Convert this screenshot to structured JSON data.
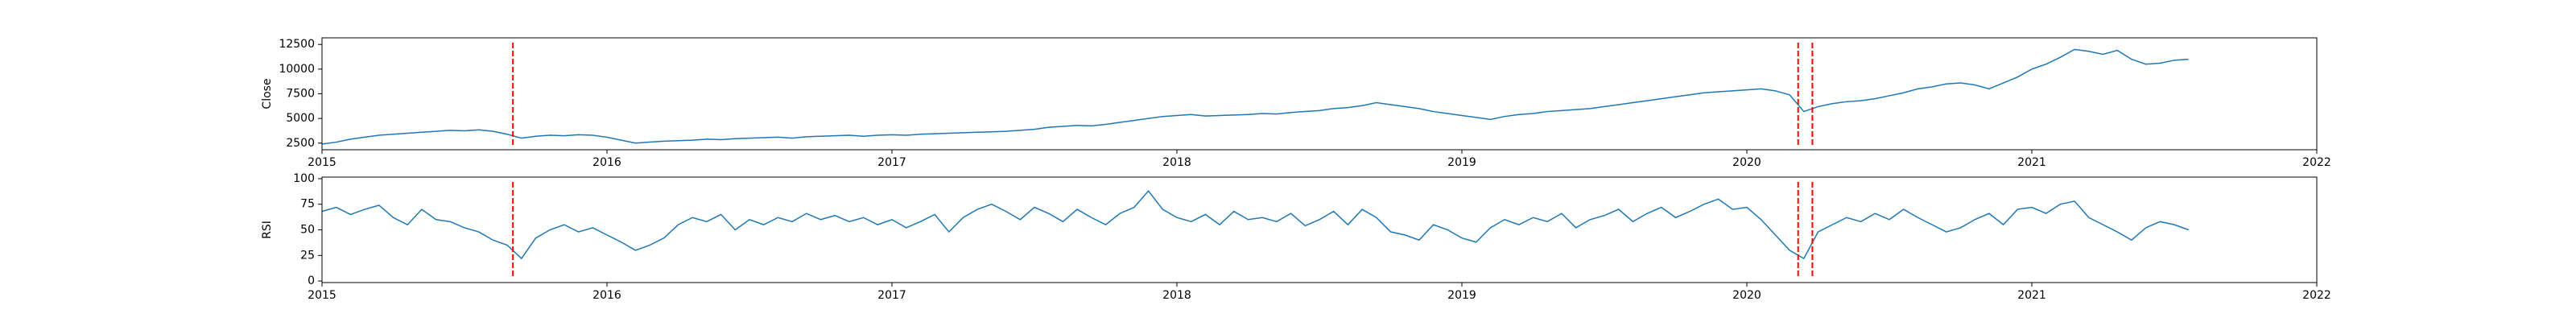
{
  "chart_data": [
    {
      "type": "line",
      "ylabel": "Close",
      "color": "#1f77b4",
      "x": [
        2015,
        2015.05,
        2015.1,
        2015.15,
        2015.2,
        2015.25,
        2015.3,
        2015.35,
        2015.4,
        2015.45,
        2015.5,
        2015.55,
        2015.6,
        2015.65,
        2015.7,
        2015.75,
        2015.8,
        2015.85,
        2015.9,
        2015.95,
        2016,
        2016.05,
        2016.1,
        2016.15,
        2016.2,
        2016.25,
        2016.3,
        2016.35,
        2016.4,
        2016.45,
        2016.5,
        2016.55,
        2016.6,
        2016.65,
        2016.7,
        2016.75,
        2016.8,
        2016.85,
        2016.9,
        2016.95,
        2017,
        2017.05,
        2017.1,
        2017.15,
        2017.2,
        2017.25,
        2017.3,
        2017.35,
        2017.4,
        2017.45,
        2017.5,
        2017.55,
        2017.6,
        2017.65,
        2017.7,
        2017.75,
        2017.8,
        2017.85,
        2017.9,
        2017.95,
        2018,
        2018.05,
        2018.1,
        2018.15,
        2018.2,
        2018.25,
        2018.3,
        2018.35,
        2018.4,
        2018.45,
        2018.5,
        2018.55,
        2018.6,
        2018.65,
        2018.7,
        2018.75,
        2018.8,
        2018.85,
        2018.9,
        2018.95,
        2019,
        2019.05,
        2019.1,
        2019.15,
        2019.2,
        2019.25,
        2019.3,
        2019.35,
        2019.4,
        2019.45,
        2019.5,
        2019.55,
        2019.6,
        2019.65,
        2019.7,
        2019.75,
        2019.8,
        2019.85,
        2019.9,
        2019.95,
        2020,
        2020.05,
        2020.1,
        2020.15,
        2020.2,
        2020.25,
        2020.3,
        2020.35,
        2020.4,
        2020.45,
        2020.5,
        2020.55,
        2020.6,
        2020.65,
        2020.7,
        2020.75,
        2020.8,
        2020.85,
        2020.9,
        2020.95,
        2021,
        2021.05,
        2021.1,
        2021.15,
        2021.2,
        2021.25,
        2021.3,
        2021.35,
        2021.4,
        2021.45,
        2021.5,
        2021.55
      ],
      "values": [
        2400,
        2600,
        2900,
        3100,
        3300,
        3400,
        3500,
        3600,
        3700,
        3800,
        3750,
        3850,
        3700,
        3400,
        3000,
        3200,
        3300,
        3250,
        3350,
        3300,
        3100,
        2800,
        2500,
        2600,
        2700,
        2750,
        2800,
        2900,
        2850,
        2950,
        3000,
        3050,
        3100,
        3000,
        3150,
        3200,
        3250,
        3300,
        3200,
        3300,
        3350,
        3300,
        3400,
        3450,
        3500,
        3550,
        3600,
        3650,
        3700,
        3800,
        3900,
        4100,
        4200,
        4300,
        4250,
        4400,
        4600,
        4800,
        5000,
        5200,
        5300,
        5400,
        5250,
        5300,
        5350,
        5400,
        5500,
        5450,
        5600,
        5700,
        5800,
        6000,
        6100,
        6300,
        6600,
        6400,
        6200,
        6000,
        5700,
        5500,
        5300,
        5100,
        4900,
        5200,
        5400,
        5500,
        5700,
        5800,
        5900,
        6000,
        6200,
        6400,
        6600,
        6800,
        7000,
        7200,
        7400,
        7600,
        7700,
        7800,
        7900,
        8000,
        7800,
        7400,
        5700,
        6200,
        6500,
        6700,
        6800,
        7000,
        7300,
        7600,
        8000,
        8200,
        8500,
        8600,
        8400,
        8000,
        8600,
        9200,
        10000,
        10500,
        11200,
        12000,
        11800,
        11500,
        11900,
        11000,
        10500,
        10600,
        10900,
        11000
      ],
      "xlim": [
        2015,
        2022
      ],
      "xticks": [
        2015,
        2016,
        2017,
        2018,
        2019,
        2020,
        2021,
        2022
      ],
      "ylim": [
        1830,
        13170
      ],
      "yticks": [
        2500,
        5000,
        7500,
        10000,
        12500
      ],
      "vlines": [
        2015.67,
        2020.18,
        2020.23
      ],
      "vline_color": "red"
    },
    {
      "type": "line",
      "ylabel": "RSI",
      "color": "#1f77b4",
      "x": [
        2015,
        2015.05,
        2015.1,
        2015.15,
        2015.2,
        2015.25,
        2015.3,
        2015.35,
        2015.4,
        2015.45,
        2015.5,
        2015.55,
        2015.6,
        2015.65,
        2015.7,
        2015.75,
        2015.8,
        2015.85,
        2015.9,
        2015.95,
        2016,
        2016.05,
        2016.1,
        2016.15,
        2016.2,
        2016.25,
        2016.3,
        2016.35,
        2016.4,
        2016.45,
        2016.5,
        2016.55,
        2016.6,
        2016.65,
        2016.7,
        2016.75,
        2016.8,
        2016.85,
        2016.9,
        2016.95,
        2017,
        2017.05,
        2017.1,
        2017.15,
        2017.2,
        2017.25,
        2017.3,
        2017.35,
        2017.4,
        2017.45,
        2017.5,
        2017.55,
        2017.6,
        2017.65,
        2017.7,
        2017.75,
        2017.8,
        2017.85,
        2017.9,
        2017.95,
        2018,
        2018.05,
        2018.1,
        2018.15,
        2018.2,
        2018.25,
        2018.3,
        2018.35,
        2018.4,
        2018.45,
        2018.5,
        2018.55,
        2018.6,
        2018.65,
        2018.7,
        2018.75,
        2018.8,
        2018.85,
        2018.9,
        2018.95,
        2019,
        2019.05,
        2019.1,
        2019.15,
        2019.2,
        2019.25,
        2019.3,
        2019.35,
        2019.4,
        2019.45,
        2019.5,
        2019.55,
        2019.6,
        2019.65,
        2019.7,
        2019.75,
        2019.8,
        2019.85,
        2019.9,
        2019.95,
        2020,
        2020.05,
        2020.1,
        2020.15,
        2020.2,
        2020.25,
        2020.3,
        2020.35,
        2020.4,
        2020.45,
        2020.5,
        2020.55,
        2020.6,
        2020.65,
        2020.7,
        2020.75,
        2020.8,
        2020.85,
        2020.9,
        2020.95,
        2021,
        2021.05,
        2021.1,
        2021.15,
        2021.2,
        2021.25,
        2021.3,
        2021.35,
        2021.4,
        2021.45,
        2021.5,
        2021.55
      ],
      "values": [
        68,
        72,
        65,
        70,
        74,
        62,
        55,
        70,
        60,
        58,
        52,
        48,
        40,
        35,
        22,
        42,
        50,
        55,
        48,
        52,
        45,
        38,
        30,
        35,
        42,
        55,
        62,
        58,
        65,
        50,
        60,
        55,
        62,
        58,
        66,
        60,
        64,
        58,
        62,
        55,
        60,
        52,
        58,
        65,
        48,
        62,
        70,
        75,
        68,
        60,
        72,
        66,
        58,
        70,
        62,
        55,
        66,
        72,
        88,
        70,
        62,
        58,
        65,
        55,
        68,
        60,
        62,
        58,
        66,
        54,
        60,
        68,
        55,
        70,
        62,
        48,
        45,
        40,
        55,
        50,
        42,
        38,
        52,
        60,
        55,
        62,
        58,
        66,
        52,
        60,
        64,
        70,
        58,
        66,
        72,
        62,
        68,
        75,
        80,
        70,
        72,
        60,
        45,
        30,
        22,
        48,
        55,
        62,
        58,
        66,
        60,
        70,
        62,
        55,
        48,
        52,
        60,
        66,
        55,
        70,
        72,
        66,
        75,
        78,
        62,
        55,
        48,
        40,
        52,
        58,
        55,
        50
      ],
      "xlim": [
        2015,
        2022
      ],
      "xticks": [
        2015,
        2016,
        2017,
        2018,
        2019,
        2020,
        2021,
        2022
      ],
      "ylim": [
        -1.5,
        101.5
      ],
      "yticks": [
        0,
        25,
        50,
        75,
        100
      ],
      "vlines": [
        2015.67,
        2020.18,
        2020.23
      ],
      "vline_color": "red"
    }
  ]
}
